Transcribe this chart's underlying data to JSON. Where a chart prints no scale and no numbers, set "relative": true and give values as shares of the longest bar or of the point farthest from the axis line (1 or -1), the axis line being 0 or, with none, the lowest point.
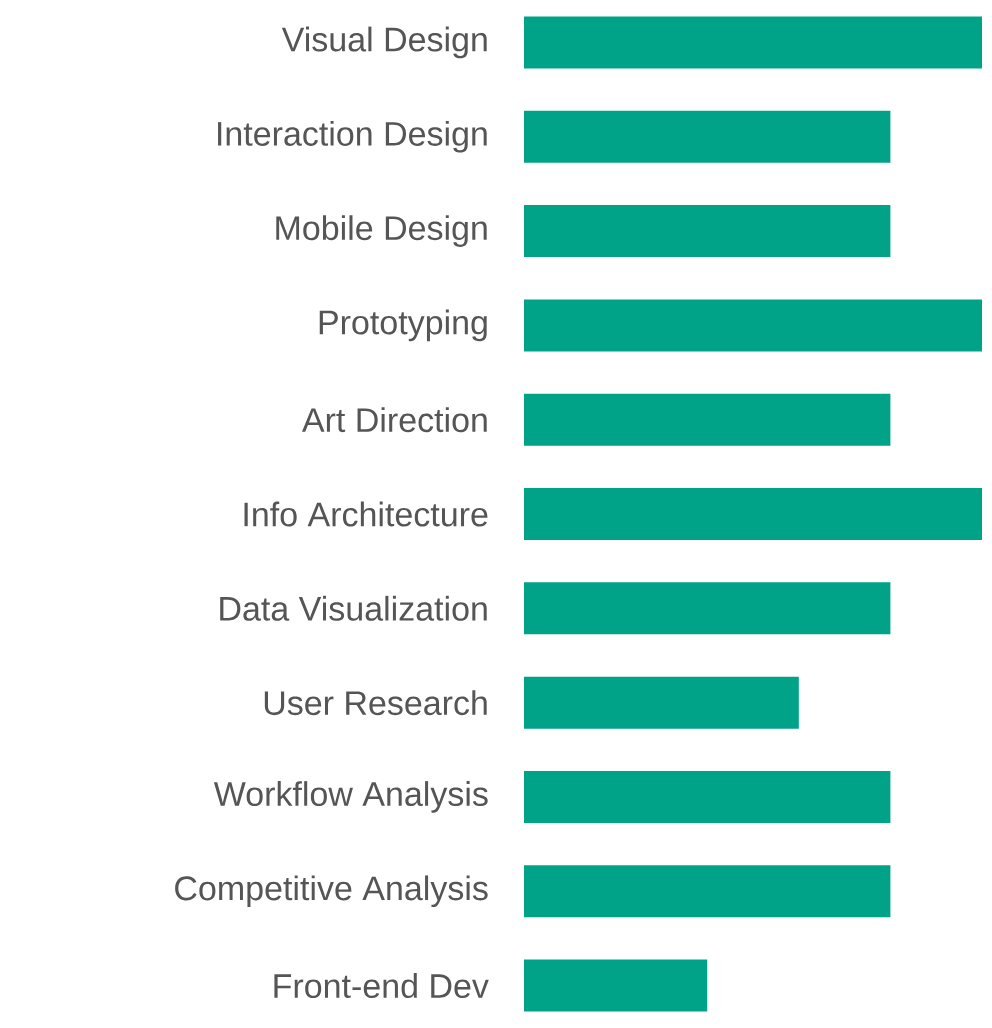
{
  "chart_data": {
    "type": "bar",
    "orientation": "horizontal",
    "relative": true,
    "color": "#00a388",
    "categories": [
      "Visual Design",
      "Interaction Design",
      "Mobile Design",
      "Prototyping",
      "Art Direction",
      "Info Architecture",
      "Data Visualization",
      "User Research",
      "Workflow Analysis",
      "Competitive Analysis",
      "Front-end Dev"
    ],
    "values": [
      1,
      0.8,
      0.8,
      1,
      0.8,
      1,
      0.8,
      0.6,
      0.8,
      0.8,
      0.4
    ]
  }
}
